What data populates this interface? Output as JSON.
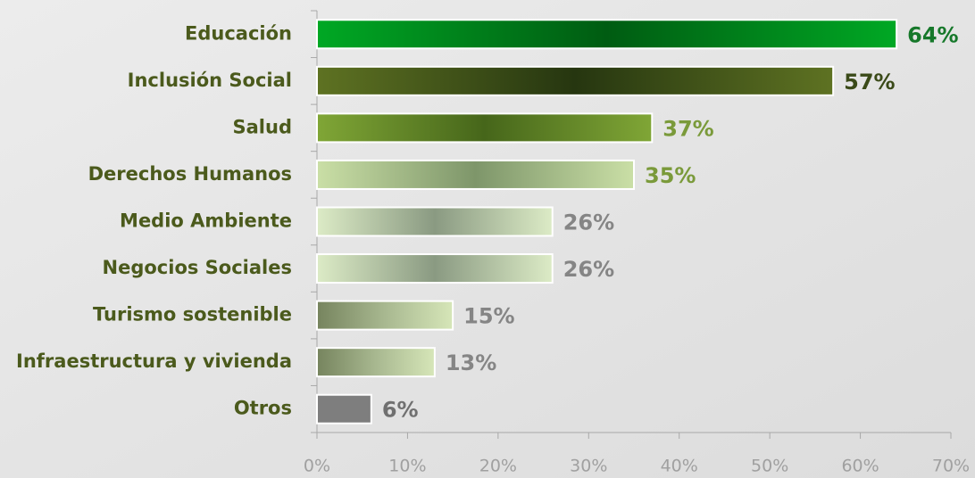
{
  "chart_data": {
    "type": "hbar",
    "categories": [
      "Educación",
      "Inclusión Social",
      "Salud",
      "Derechos Humanos",
      "Medio Ambiente",
      "Negocios Sociales",
      "Turismo sostenible",
      "Infraestructura y vivienda",
      "Otros"
    ],
    "values": [
      64,
      57,
      37,
      35,
      26,
      26,
      15,
      13,
      6
    ],
    "value_labels": [
      "64%",
      "57%",
      "37%",
      "35%",
      "26%",
      "26%",
      "15%",
      "13%",
      "6%"
    ],
    "colors": [
      [
        "#00a824",
        "#005c12",
        "#00a824"
      ],
      [
        "#5e7222",
        "#263610",
        "#5e7222"
      ],
      [
        "#80a636",
        "#46661a",
        "#80a636"
      ],
      [
        "#cadfa6",
        "#7e966a",
        "#cadfa6"
      ],
      [
        "#dcebc6",
        "#8a9a82",
        "#dcebc6"
      ],
      [
        "#dcebc6",
        "#8a9a82",
        "#dcebc6"
      ],
      [
        "#76845e",
        "#a8b890",
        "#d6e6b8"
      ],
      [
        "#76845e",
        "#a8b890",
        "#d6e6b8"
      ],
      [
        "#7e7e7e",
        "#7e7e7e",
        "#7e7e7e"
      ]
    ],
    "label_colors": [
      "#16782a",
      "#3a4a18",
      "#7a9a3a",
      "#7a9a3a",
      "#858585",
      "#858585",
      "#858585",
      "#858585",
      "#707070"
    ],
    "xlim": [
      0,
      70
    ],
    "xticks": [
      {
        "value": 0,
        "label": "0%"
      },
      {
        "value": 10,
        "label": "10%"
      },
      {
        "value": 20,
        "label": "20%"
      },
      {
        "value": 30,
        "label": "30%"
      },
      {
        "value": 40,
        "label": "40%"
      },
      {
        "value": 50,
        "label": "50%"
      },
      {
        "value": 60,
        "label": "60%"
      },
      {
        "value": 70,
        "label": "70%"
      }
    ]
  }
}
